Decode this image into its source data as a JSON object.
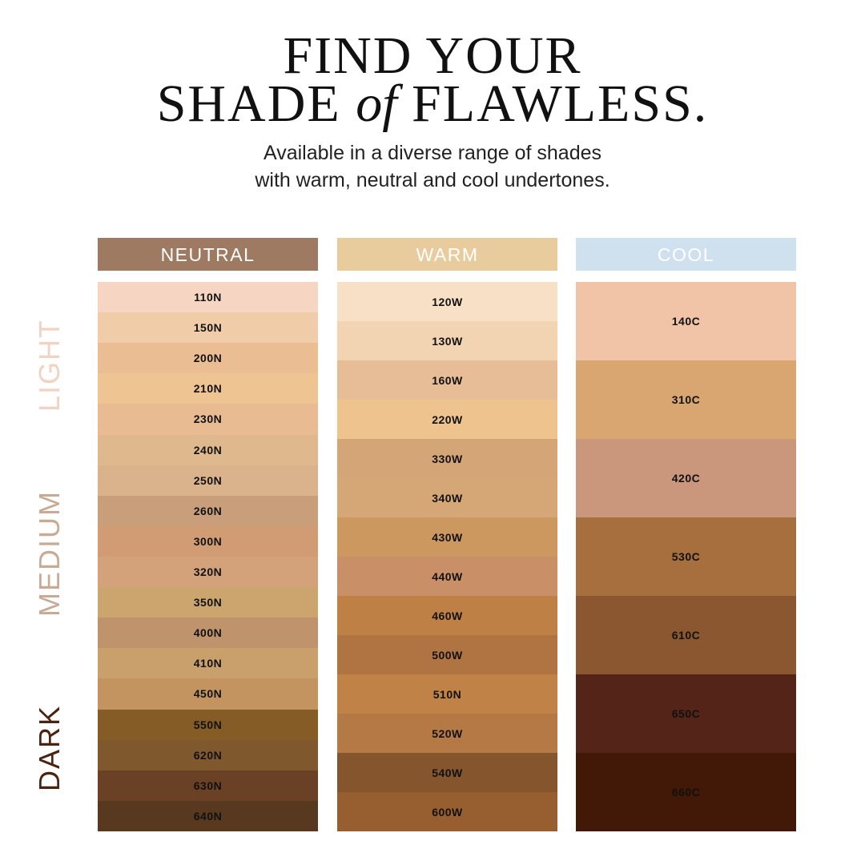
{
  "title": {
    "line1": "FIND YOUR",
    "line2_a": "SHADE",
    "line2_of": "of",
    "line2_b": "FLAWLESS."
  },
  "subtitle": {
    "line1": "Available in a diverse range of shades",
    "line2": "with warm, neutral and cool undertones."
  },
  "depth_labels": [
    {
      "label": "LIGHT",
      "color": "#f1d3c3"
    },
    {
      "label": "MEDIUM",
      "color": "#c9ab95"
    },
    {
      "label": "DARK",
      "color": "#4a2311"
    }
  ],
  "columns": [
    {
      "label": "NEUTRAL",
      "color": "#9e7a62",
      "shades": [
        {
          "name": "110N",
          "color": "#f6d6c3"
        },
        {
          "name": "150N",
          "color": "#f1cca9"
        },
        {
          "name": "200N",
          "color": "#ebbd92"
        },
        {
          "name": "210N",
          "color": "#efc493"
        },
        {
          "name": "230N",
          "color": "#e9bb92"
        },
        {
          "name": "240N",
          "color": "#e0b88d"
        },
        {
          "name": "250N",
          "color": "#dab28c"
        },
        {
          "name": "260N",
          "color": "#c99f7b"
        },
        {
          "name": "300N",
          "color": "#d19b74"
        },
        {
          "name": "320N",
          "color": "#d3a27a"
        },
        {
          "name": "350N",
          "color": "#cca56e"
        },
        {
          "name": "400N",
          "color": "#bf946c"
        },
        {
          "name": "410N",
          "color": "#c99f6c"
        },
        {
          "name": "450N",
          "color": "#c3945f"
        },
        {
          "name": "550N",
          "color": "#855c25"
        },
        {
          "name": "620N",
          "color": "#7f582e"
        },
        {
          "name": "630N",
          "color": "#6a4125"
        },
        {
          "name": "640N",
          "color": "#583920"
        }
      ]
    },
    {
      "label": "WARM",
      "color": "#e8cc9e",
      "shades": [
        {
          "name": "120W",
          "color": "#f7e0c5"
        },
        {
          "name": "130W",
          "color": "#f2d4b2"
        },
        {
          "name": "160W",
          "color": "#e7bd97"
        },
        {
          "name": "220W",
          "color": "#eec38d"
        },
        {
          "name": "330W",
          "color": "#d3a577"
        },
        {
          "name": "340W",
          "color": "#d6a776"
        },
        {
          "name": "430W",
          "color": "#cd985f"
        },
        {
          "name": "440W",
          "color": "#c99068"
        },
        {
          "name": "460W",
          "color": "#bf8045"
        },
        {
          "name": "500W",
          "color": "#b07442"
        },
        {
          "name": "510N",
          "color": "#c08246"
        },
        {
          "name": "520W",
          "color": "#b57945"
        },
        {
          "name": "540W",
          "color": "#85552d"
        },
        {
          "name": "600W",
          "color": "#975e30"
        }
      ]
    },
    {
      "label": "COOL",
      "color": "#cfe1ee",
      "shades": [
        {
          "name": "140C",
          "color": "#f1c4a8"
        },
        {
          "name": "310C",
          "color": "#d9a672"
        },
        {
          "name": "420C",
          "color": "#ca977c"
        },
        {
          "name": "530C",
          "color": "#a86f3e"
        },
        {
          "name": "610C",
          "color": "#8b5731"
        },
        {
          "name": "650C",
          "color": "#552418"
        },
        {
          "name": "660C",
          "color": "#421806"
        }
      ]
    }
  ]
}
